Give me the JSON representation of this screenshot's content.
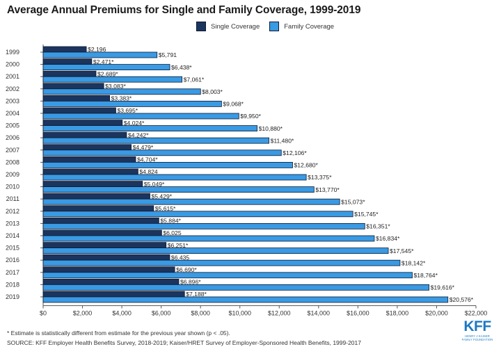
{
  "title": "Average Annual Premiums for Single and Family Coverage, 1999-2019",
  "legend": {
    "single": "Single Coverage",
    "family": "Family Coverage"
  },
  "colors": {
    "single": "#1b355e",
    "family": "#3a9ae3",
    "outline": "#0c1a33"
  },
  "footnote": "* Estimate is statistically different from estimate for the previous year shown (p < .05).",
  "source": "SOURCE: KFF Employer Health Benefits Survey, 2018-2019; Kaiser/HRET Survey of Employer-Sponsored Health Benefits, 1999-2017",
  "logo": {
    "mark": "KFF",
    "sub": "HENRY J KAISER FAMILY FOUNDATION"
  },
  "chart_data": {
    "type": "bar",
    "orientation": "horizontal",
    "categories": [
      "1999",
      "2000",
      "2001",
      "2002",
      "2003",
      "2004",
      "2005",
      "2006",
      "2007",
      "2008",
      "2009",
      "2010",
      "2011",
      "2012",
      "2013",
      "2014",
      "2015",
      "2016",
      "2017",
      "2018",
      "2019"
    ],
    "series": [
      {
        "name": "Single Coverage",
        "values": [
          2196,
          2471,
          2689,
          3083,
          3383,
          3695,
          4024,
          4242,
          4479,
          4704,
          4824,
          5049,
          5429,
          5615,
          5884,
          6025,
          6251,
          6435,
          6690,
          6896,
          7188
        ],
        "labels": [
          "$2,196",
          "$2,471*",
          "$2,689*",
          "$3,083*",
          "$3,383*",
          "$3,695*",
          "$4,024*",
          "$4,242*",
          "$4,479*",
          "$4,704*",
          "$4,824",
          "$5,049*",
          "$5,429*",
          "$5,615*",
          "$5,884*",
          "$6,025",
          "$6,251*",
          "$6,435",
          "$6,690*",
          "$6,896*",
          "$7,188*"
        ]
      },
      {
        "name": "Family Coverage",
        "values": [
          5791,
          6438,
          7061,
          8003,
          9068,
          9950,
          10880,
          11480,
          12106,
          12680,
          13375,
          13770,
          15073,
          15745,
          16351,
          16834,
          17545,
          18142,
          18764,
          19616,
          20576
        ],
        "labels": [
          "$5,791",
          "$6,438*",
          "$7,061*",
          "$8,003*",
          "$9,068*",
          "$9,950*",
          "$10,880*",
          "$11,480*",
          "$12,106*",
          "$12,680*",
          "$13,375*",
          "$13,770*",
          "$15,073*",
          "$15,745*",
          "$16,351*",
          "$16,834*",
          "$17,545*",
          "$18,142*",
          "$18,764*",
          "$19,616*",
          "$20,576*"
        ]
      }
    ],
    "xlim": [
      0,
      22000
    ],
    "xticks": [
      "$0",
      "$2,000",
      "$4,000",
      "$6,000",
      "$8,000",
      "$10,000",
      "$12,000",
      "$14,000",
      "$16,000",
      "$18,000",
      "$20,000",
      "$22,000"
    ],
    "grid": false,
    "legend_position": "top-center"
  }
}
